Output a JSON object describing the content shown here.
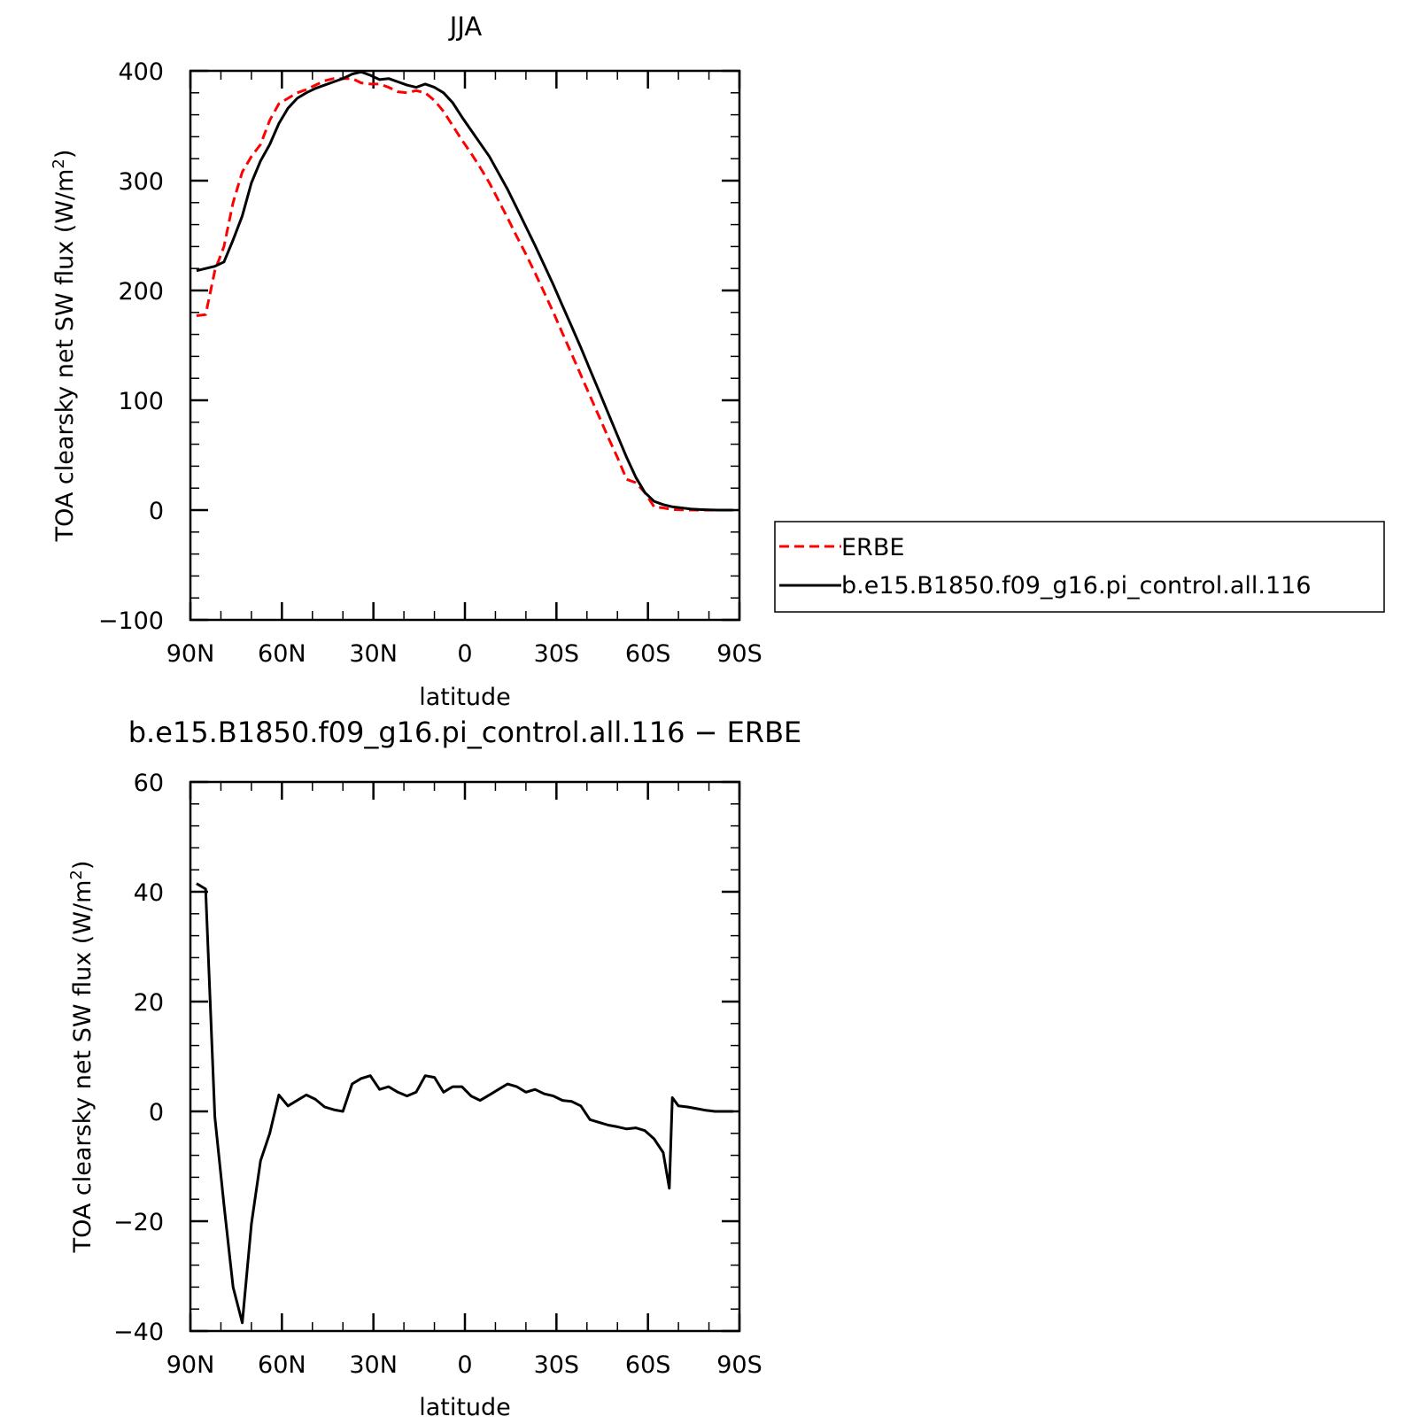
{
  "chart_data": [
    {
      "type": "line",
      "title": "JJA",
      "xlabel": "latitude",
      "ylabel": "TOA clearsky net SW flux (W/m²)",
      "ylabel_base": "TOA clearsky net SW flux (W/m",
      "ylabel_sup": "2",
      "ylabel_tail": ")",
      "xlim": [
        90,
        -90
      ],
      "ylim": [
        -100,
        400
      ],
      "x_ticks": [
        90,
        60,
        30,
        0,
        -30,
        -60,
        -90
      ],
      "x_tick_labels": [
        "90N",
        "60N",
        "30N",
        "0",
        "30S",
        "60S",
        "90S"
      ],
      "y_ticks": [
        -100,
        0,
        100,
        200,
        300,
        400
      ],
      "y_tick_labels": [
        "−100",
        "0",
        "100",
        "200",
        "300",
        "400"
      ],
      "legend": {
        "placement": "right"
      },
      "series": [
        {
          "name": "ERBE",
          "color": "#ff0000",
          "dash": "dashed",
          "x": [
            88,
            85,
            82,
            79,
            76,
            73,
            70,
            67,
            64,
            61,
            58,
            55,
            52,
            49,
            46,
            43,
            40,
            37,
            34,
            31,
            28,
            25,
            22,
            19,
            16,
            13,
            10,
            7,
            4,
            1,
            -2,
            -5,
            -8,
            -11,
            -14,
            -17,
            -20,
            -23,
            -26,
            -29,
            -32,
            -35,
            -38,
            -41,
            -44,
            -47,
            -50,
            -53,
            -56,
            -59,
            -62,
            -65,
            -67,
            -68,
            -70,
            -73,
            -76,
            -79,
            -82,
            -85,
            -88
          ],
          "y": [
            177,
            178,
            218,
            240,
            280,
            308,
            322,
            333,
            355,
            370,
            375,
            380,
            383,
            387,
            391,
            393,
            393,
            393,
            389,
            388,
            388,
            385,
            381,
            380,
            382,
            380,
            373,
            363,
            350,
            337,
            325,
            312,
            298,
            282,
            266,
            249,
            233,
            216,
            198,
            180,
            161,
            142,
            123,
            104,
            85,
            66,
            48,
            28,
            25,
            16,
            3,
            2,
            1,
            0.5,
            0.3,
            0.2,
            0,
            0,
            0,
            0,
            0
          ]
        },
        {
          "name": "b.e15.B1850.f09_g16.pi_control.all.116",
          "color": "#000000",
          "dash": "solid",
          "x": [
            88,
            85,
            82,
            79,
            76,
            73,
            70,
            67,
            64,
            61,
            58,
            55,
            52,
            49,
            46,
            43,
            40,
            37,
            34,
            31,
            28,
            25,
            22,
            19,
            16,
            13,
            10,
            7,
            4,
            1,
            -2,
            -5,
            -8,
            -11,
            -14,
            -17,
            -20,
            -23,
            -26,
            -29,
            -32,
            -35,
            -38,
            -41,
            -44,
            -47,
            -50,
            -53,
            -56,
            -59,
            -62,
            -65,
            -68,
            -71,
            -74,
            -77,
            -80,
            -83,
            -86,
            -88
          ],
          "y": [
            218,
            220,
            222,
            226,
            246,
            268,
            298,
            318,
            333,
            352,
            366,
            375,
            380,
            384,
            387,
            390,
            393,
            397,
            399,
            396,
            392,
            393,
            390,
            387,
            385,
            388,
            385,
            380,
            371,
            358,
            346,
            334,
            322,
            307,
            292,
            275,
            258,
            241,
            223,
            205,
            186,
            167,
            148,
            128,
            108,
            88,
            68,
            48,
            30,
            16,
            8,
            5,
            3,
            2,
            1,
            0.5,
            0.2,
            0,
            0,
            0
          ]
        }
      ]
    },
    {
      "type": "line",
      "title": "b.e15.B1850.f09_g16.pi_control.all.116 − ERBE",
      "xlabel": "latitude",
      "ylabel": "TOA clearsky net SW flux (W/m²)",
      "ylabel_base": "TOA clearsky net SW flux (W/m",
      "ylabel_sup": "2",
      "ylabel_tail": ")",
      "xlim": [
        90,
        -90
      ],
      "ylim": [
        -40,
        60
      ],
      "x_ticks": [
        90,
        60,
        30,
        0,
        -30,
        -60,
        -90
      ],
      "x_tick_labels": [
        "90N",
        "60N",
        "30N",
        "0",
        "30S",
        "60S",
        "90S"
      ],
      "y_ticks": [
        -40,
        -20,
        0,
        20,
        40,
        60
      ],
      "y_tick_labels": [
        "−40",
        "−20",
        "0",
        "20",
        "40",
        "60"
      ],
      "series": [
        {
          "color": "#000000",
          "dash": "solid",
          "x": [
            88,
            85,
            82,
            79,
            76,
            73,
            70,
            67,
            64,
            61,
            58,
            55,
            52,
            49,
            46,
            43,
            40,
            37,
            34,
            31,
            28,
            25,
            22,
            19,
            16,
            13,
            10,
            7,
            4,
            1,
            -2,
            -5,
            -8,
            -11,
            -14,
            -17,
            -20,
            -23,
            -26,
            -29,
            -32,
            -35,
            -38,
            -41,
            -44,
            -47,
            -50,
            -53,
            -56,
            -59,
            -62,
            -65,
            -67,
            -68,
            -70,
            -73,
            -76,
            -79,
            -82,
            -85,
            -88
          ],
          "y": [
            41.5,
            40.5,
            -1,
            -17,
            -32,
            -38.5,
            -20.5,
            -9,
            -4,
            3,
            1,
            2,
            3,
            2.2,
            0.8,
            0.3,
            0,
            5,
            6,
            6.5,
            4,
            4.5,
            3.5,
            2.8,
            3.5,
            6.5,
            6.2,
            3.5,
            4.5,
            4.5,
            2.8,
            2,
            3,
            4,
            5,
            4.5,
            3.5,
            4,
            3.2,
            2.8,
            2,
            1.8,
            1,
            -1.5,
            -2,
            -2.5,
            -2.8,
            -3.2,
            -3,
            -3.5,
            -5,
            -7.5,
            -14,
            2.5,
            1,
            0.8,
            0.5,
            0.2,
            0,
            0,
            0
          ]
        }
      ]
    }
  ]
}
